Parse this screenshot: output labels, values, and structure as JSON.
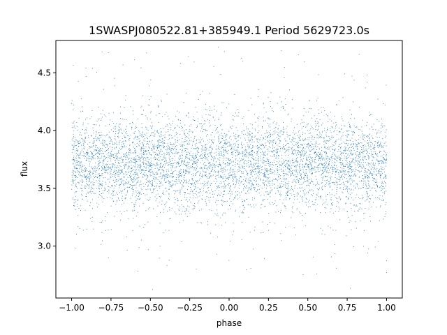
{
  "chart_data": {
    "type": "scatter",
    "title": "1SWASPJ080522.81+385949.1 Period 5629723.0s",
    "xlabel": "phase",
    "ylabel": "flux",
    "xlim": [
      -1.1,
      1.1
    ],
    "ylim": [
      2.55,
      4.78
    ],
    "x_ticks": [
      -1.0,
      -0.75,
      -0.5,
      -0.25,
      0.0,
      0.25,
      0.5,
      0.75,
      1.0
    ],
    "x_tick_labels": [
      "−1.00",
      "−0.75",
      "−0.50",
      "−0.25",
      "0.00",
      "0.25",
      "0.50",
      "0.75",
      "1.00"
    ],
    "y_ticks": [
      3.0,
      3.5,
      4.0,
      4.5
    ],
    "y_tick_labels": [
      "3.0",
      "3.5",
      "4.0",
      "4.5"
    ],
    "grid": false,
    "legend": "none",
    "point_color": "#1f77b4",
    "series": [
      {
        "x_range": [
          -1.0,
          1.0
        ],
        "central_flux": 3.72,
        "typical_band": [
          3.3,
          4.1
        ],
        "outlier_range": [
          2.62,
          4.75
        ],
        "point_count_approx": 6000
      }
    ]
  }
}
